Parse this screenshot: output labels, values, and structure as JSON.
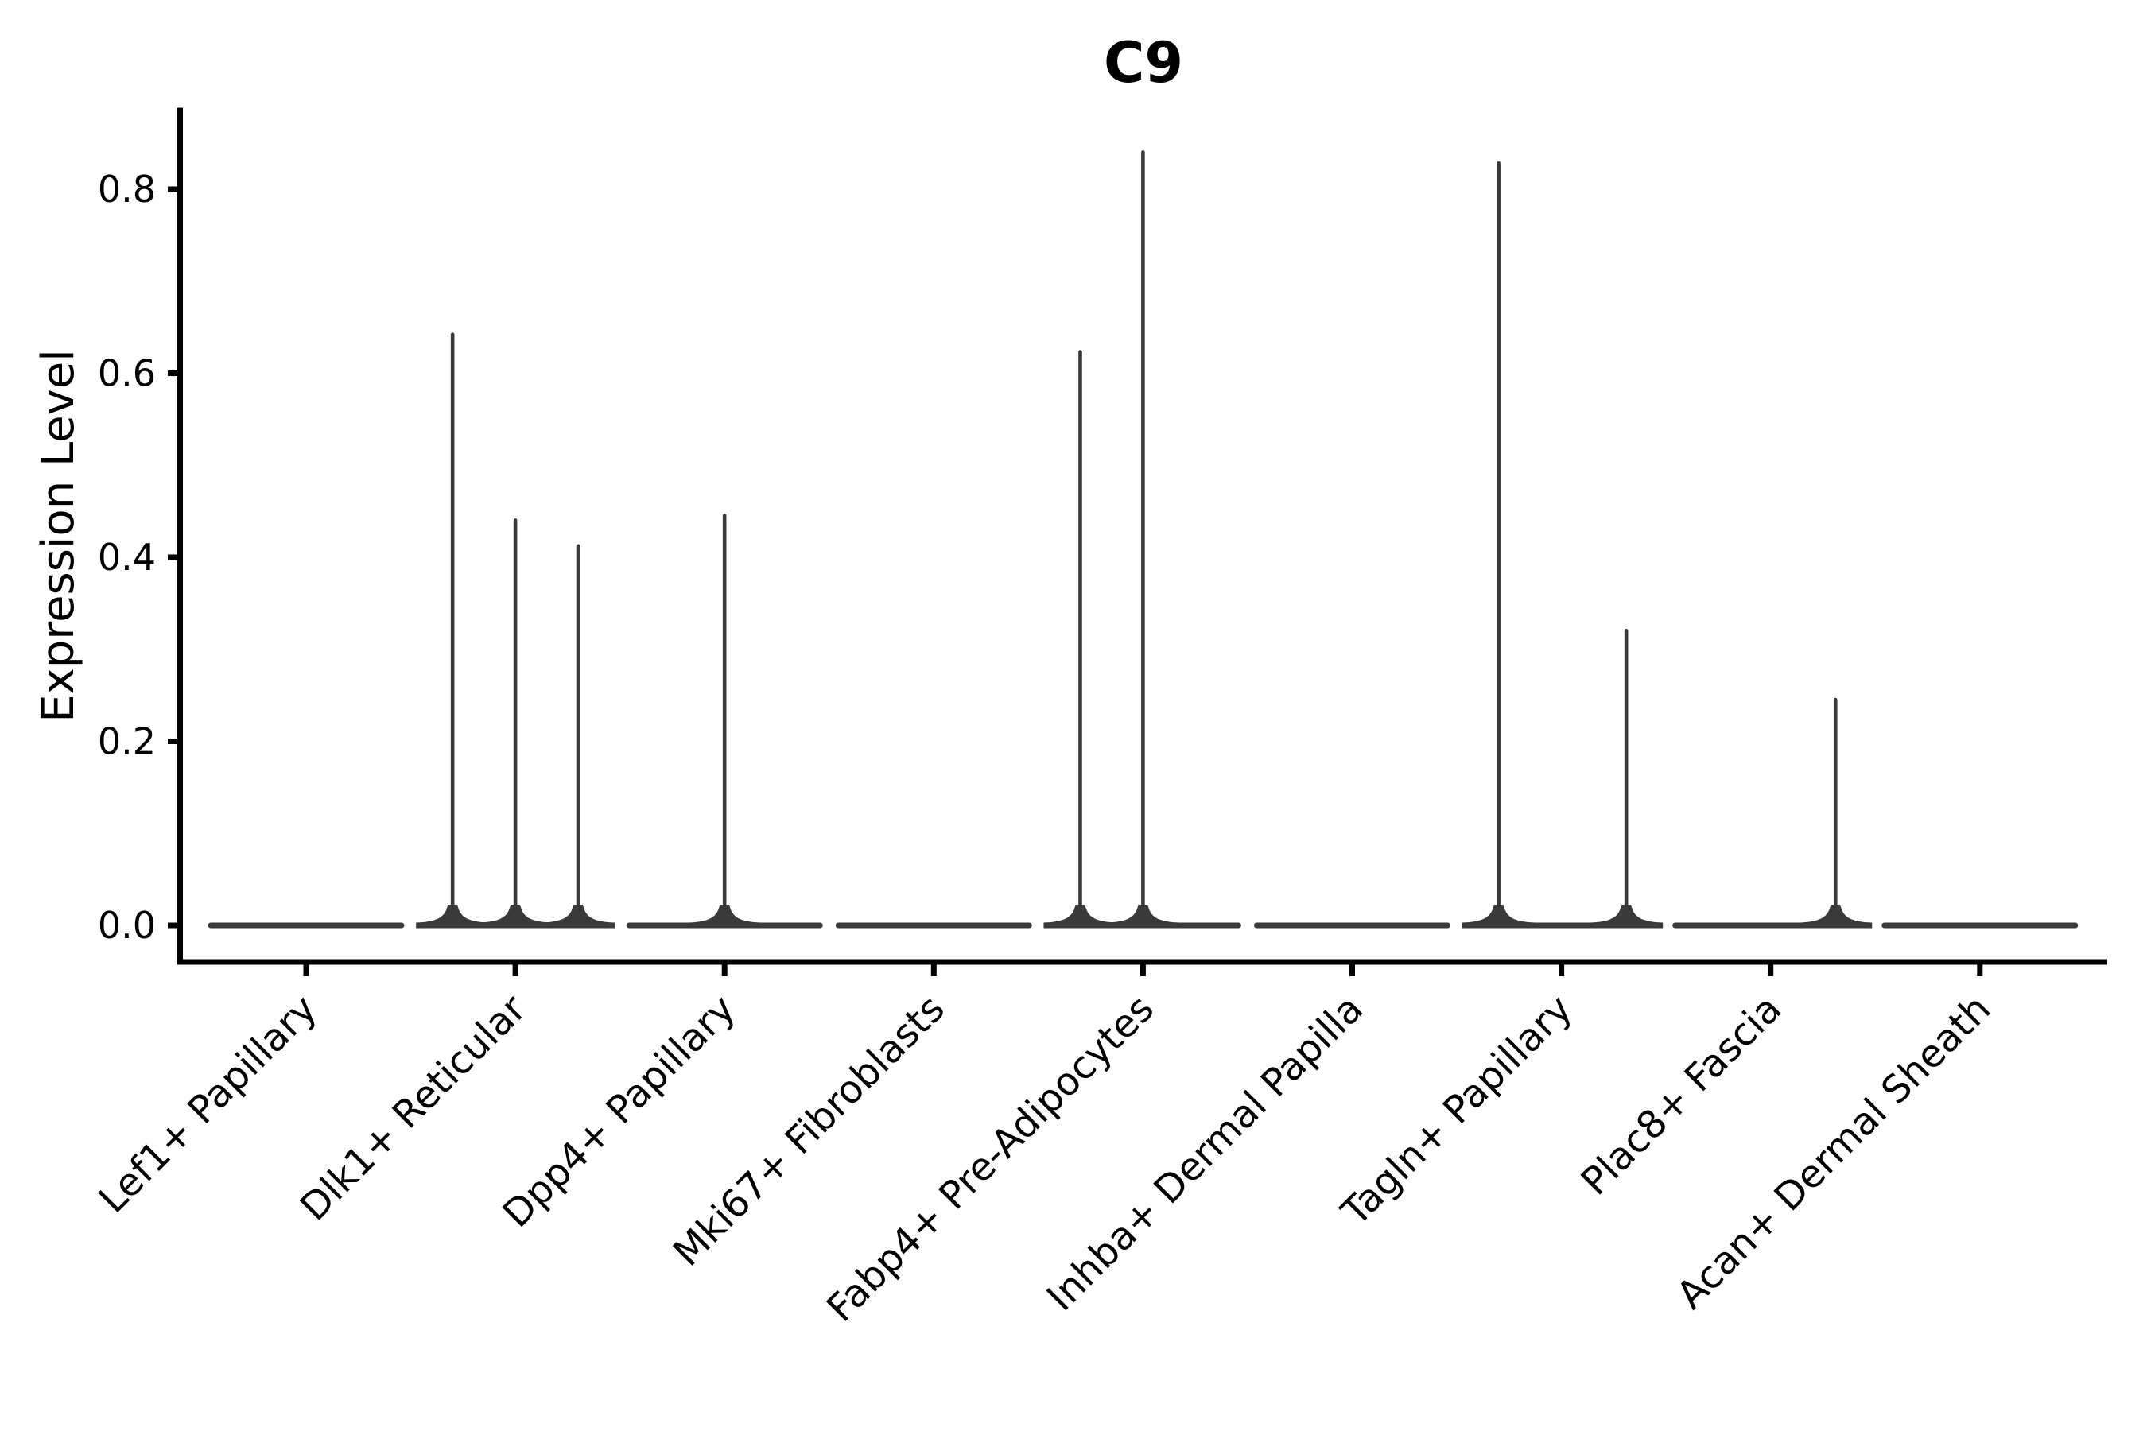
{
  "chart_data": {
    "type": "violin",
    "title": "C9",
    "ylabel": "Expression Level",
    "xlabel": "",
    "categories": [
      "Lef1+ Papillary",
      "Dlk1+ Reticular",
      "Dpp4+ Papillary",
      "Mki67+ Fibroblasts",
      "Fabp4+ Pre-Adipocytes",
      "Inhba+ Dermal Papilla",
      "Tagln+ Papillary",
      "Plac8+ Fascia",
      "Acan+ Dermal Sheath"
    ],
    "yticks": [
      "0.0",
      "0.2",
      "0.4",
      "0.6",
      "0.8"
    ],
    "ylim": [
      -0.04,
      0.886
    ],
    "x_tick_rotation": 45,
    "grid": false,
    "legend": null,
    "series": [
      {
        "category": "Lef1+ Papillary",
        "baseline": 0.0,
        "spikes": []
      },
      {
        "category": "Dlk1+ Reticular",
        "baseline": 0.0,
        "spikes": [
          {
            "dx": -0.3,
            "value": 0.644
          },
          {
            "dx": 0.0,
            "value": 0.442
          },
          {
            "dx": 0.3,
            "value": 0.414
          }
        ]
      },
      {
        "category": "Dpp4+ Papillary",
        "baseline": 0.0,
        "spikes": [
          {
            "dx": 0.0,
            "value": 0.447
          }
        ]
      },
      {
        "category": "Mki67+ Fibroblasts",
        "baseline": 0.0,
        "spikes": []
      },
      {
        "category": "Fabp4+ Pre-Adipocytes",
        "baseline": 0.0,
        "spikes": [
          {
            "dx": -0.3,
            "value": 0.625
          },
          {
            "dx": 0.0,
            "value": 0.842
          }
        ]
      },
      {
        "category": "Inhba+ Dermal Papilla",
        "baseline": 0.0,
        "spikes": []
      },
      {
        "category": "Tagln+ Papillary",
        "baseline": 0.0,
        "spikes": [
          {
            "dx": -0.3,
            "value": 0.83
          },
          {
            "dx": 0.31,
            "value": 0.322
          }
        ]
      },
      {
        "category": "Plac8+ Fascia",
        "baseline": 0.0,
        "spikes": [
          {
            "dx": 0.31,
            "value": 0.247
          }
        ]
      },
      {
        "category": "Acan+ Dermal Sheath",
        "baseline": 0.0,
        "spikes": []
      }
    ],
    "colors": {
      "violin": "#3a3a3a",
      "axis": "#000000",
      "text": "#000000",
      "background": "#ffffff"
    }
  }
}
